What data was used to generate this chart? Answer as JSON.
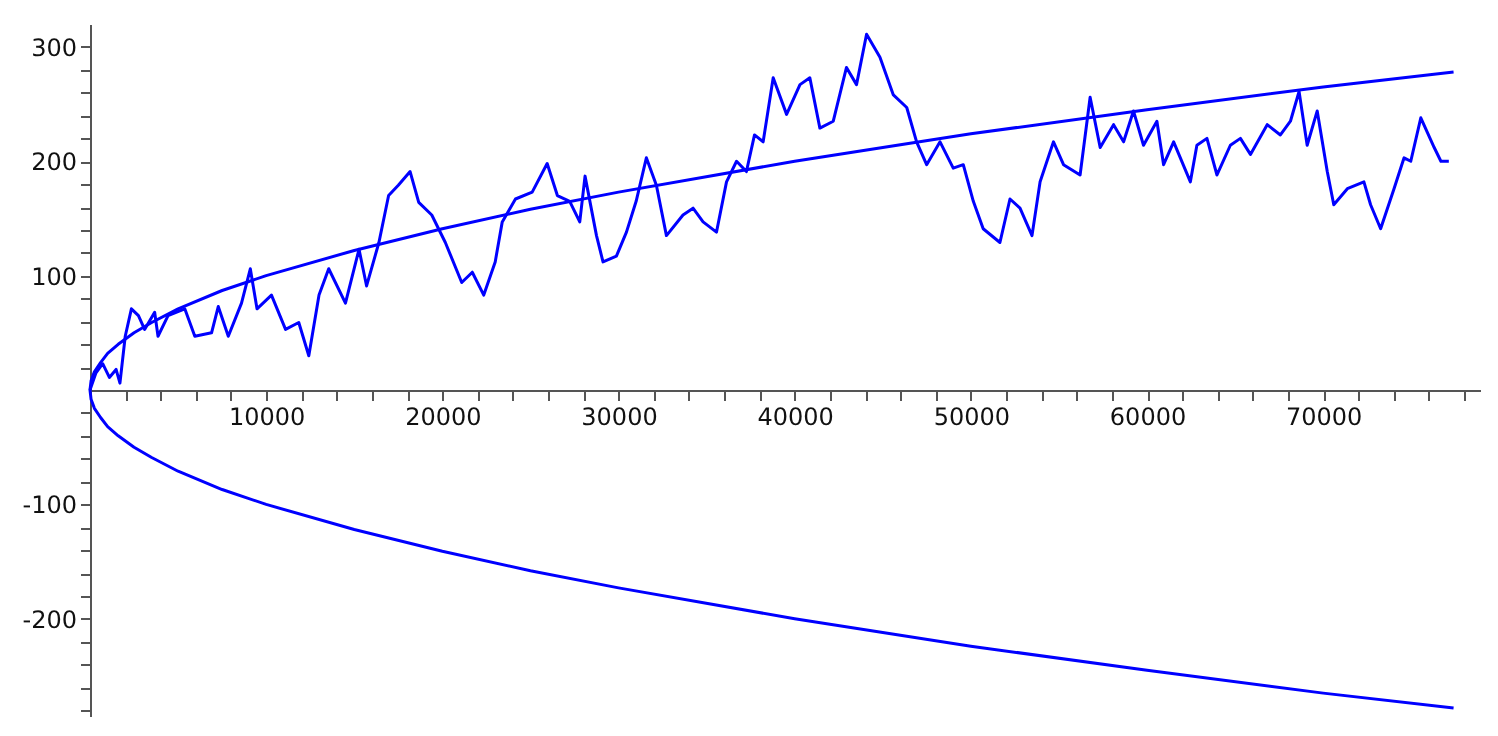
{
  "chart_data": {
    "type": "line",
    "xlim": [
      0,
      78900
    ],
    "ylim": [
      -285,
      320
    ],
    "xticks": [
      {
        "value": 2000,
        "label": null
      },
      {
        "value": 4000,
        "label": null
      },
      {
        "value": 6000,
        "label": null
      },
      {
        "value": 8000,
        "label": null
      },
      10000,
      {
        "value": 12000,
        "label": null
      },
      {
        "value": 14000,
        "label": null
      },
      {
        "value": 16000,
        "label": null
      },
      {
        "value": 18000,
        "label": null
      },
      20000,
      {
        "value": 22000,
        "label": null
      },
      {
        "value": 24000,
        "label": null
      },
      {
        "value": 26000,
        "label": null
      },
      {
        "value": 28000,
        "label": null
      },
      30000,
      {
        "value": 32000,
        "label": null
      },
      {
        "value": 34000,
        "label": null
      },
      {
        "value": 36000,
        "label": null
      },
      {
        "value": 38000,
        "label": null
      },
      40000,
      {
        "value": 42000,
        "label": null
      },
      {
        "value": 44000,
        "label": null
      },
      {
        "value": 46000,
        "label": null
      },
      {
        "value": 48000,
        "label": null
      },
      50000,
      {
        "value": 52000,
        "label": null
      },
      {
        "value": 54000,
        "label": null
      },
      {
        "value": 56000,
        "label": null
      },
      {
        "value": 58000,
        "label": null
      },
      60000,
      {
        "value": 62000,
        "label": null
      },
      {
        "value": 64000,
        "label": null
      },
      {
        "value": 66000,
        "label": null
      },
      {
        "value": 68000,
        "label": null
      },
      70000,
      {
        "value": 72000,
        "label": null
      },
      {
        "value": 74000,
        "label": null
      },
      {
        "value": 76000,
        "label": null
      },
      {
        "value": 78000,
        "label": null
      }
    ],
    "yticks": [
      {
        "value": -280,
        "label": null
      },
      {
        "value": -260,
        "label": null
      },
      {
        "value": -240,
        "label": null
      },
      {
        "value": -220,
        "label": null
      },
      -200,
      {
        "value": -180,
        "label": null
      },
      {
        "value": -160,
        "label": null
      },
      {
        "value": -140,
        "label": null
      },
      {
        "value": -120,
        "label": null
      },
      -100,
      {
        "value": -80,
        "label": null
      },
      {
        "value": -60,
        "label": null
      },
      {
        "value": -40,
        "label": null
      },
      {
        "value": -20,
        "label": null
      },
      {
        "value": 20,
        "label": null
      },
      {
        "value": 40,
        "label": null
      },
      {
        "value": 60,
        "label": null
      },
      {
        "value": 80,
        "label": null
      },
      100,
      {
        "value": 120,
        "label": null
      },
      {
        "value": 140,
        "label": null
      },
      {
        "value": 160,
        "label": null
      },
      {
        "value": 180,
        "label": null
      },
      200,
      {
        "value": 220,
        "label": null
      },
      {
        "value": 240,
        "label": null
      },
      {
        "value": 260,
        "label": null
      },
      {
        "value": 280,
        "label": null
      },
      300
    ],
    "grid": false,
    "series": [
      {
        "color": "#0000ff",
        "x": [
          0,
          340,
          720,
          1100,
          1480,
          1700,
          2000,
          2350,
          2750,
          3100,
          3670,
          3860,
          4430,
          5380,
          5950,
          6900,
          7280,
          7850,
          8600,
          9100,
          9480,
          10300,
          11100,
          11850,
          12420,
          13000,
          13550,
          14500,
          15270,
          15700,
          16400,
          16950,
          17500,
          18170,
          18660,
          19400,
          20170,
          21100,
          21700,
          22350,
          23000,
          23400,
          24150,
          25100,
          25950,
          26530,
          27230,
          27800,
          28100,
          28750,
          29120,
          29880,
          30450,
          31000,
          31580,
          32150,
          32720,
          33660,
          34230,
          34800,
          35560,
          36130,
          36700,
          37260,
          37720,
          38210,
          38780,
          39540,
          40300,
          40860,
          41430,
          42190,
          42940,
          43510,
          44080,
          44840,
          45600,
          46360,
          46920,
          47490,
          48250,
          49000,
          49570,
          50140,
          50700,
          51650,
          52220,
          52790,
          53470,
          53930,
          54690,
          55260,
          56200,
          56770,
          57340,
          58100,
          58670,
          59230,
          59800,
          60560,
          60940,
          61510,
          62460,
          62830,
          63400,
          63970,
          64730,
          65300,
          65870,
          66820,
          67570,
          68140,
          68630,
          69090,
          69660,
          70230,
          70600,
          71370,
          72310,
          72690,
          73260,
          74020,
          74590,
          74970,
          75540,
          76300,
          76680,
          77130
        ],
        "values": [
          0,
          15,
          23,
          11,
          18,
          6,
          47,
          71,
          65,
          53,
          68,
          47,
          65,
          71,
          47,
          50,
          73,
          47,
          76,
          106,
          71,
          83,
          53,
          59,
          30,
          83,
          106,
          76,
          123,
          91,
          129,
          170,
          179,
          191,
          164,
          153,
          129,
          94,
          103,
          83,
          112,
          147,
          167,
          173,
          198,
          170,
          165,
          147,
          187,
          135,
          112,
          117,
          138,
          165,
          203,
          179,
          135,
          153,
          159,
          147,
          138,
          182,
          200,
          191,
          223,
          217,
          273,
          241,
          267,
          273,
          229,
          235,
          282,
          267,
          311,
          291,
          258,
          247,
          217,
          197,
          217,
          194,
          197,
          165,
          141,
          129,
          167,
          159,
          135,
          182,
          217,
          197,
          188,
          256,
          212,
          232,
          217,
          244,
          214,
          235,
          197,
          217,
          182,
          214,
          220,
          188,
          214,
          220,
          206,
          232,
          223,
          235,
          261,
          214,
          244,
          191,
          162,
          176,
          182,
          162,
          141,
          176,
          203,
          200,
          238,
          212,
          200,
          200
        ]
      },
      {
        "color": "#0000ff",
        "x": [
          77400,
          70000,
          60000,
          50000,
          40000,
          30000,
          25000,
          20000,
          15000,
          10000,
          7500,
          5000,
          3500,
          2500,
          1600,
          1000,
          600,
          250,
          60,
          0,
          60,
          250,
          600,
          1000,
          1600,
          2500,
          3500,
          5000,
          7500,
          10000,
          15000,
          20000,
          25000,
          30000,
          40000,
          50000,
          60000,
          70000,
          77400
        ],
        "values": [
          -278,
          -265,
          -245,
          -224,
          -200,
          -173,
          -158,
          -141,
          -122,
          -100,
          -87,
          -71,
          -59,
          -50,
          -40,
          -32,
          -24,
          -16,
          -8,
          0,
          8,
          16,
          24,
          32,
          40,
          50,
          59,
          71,
          87,
          100,
          122,
          141,
          158,
          173,
          200,
          224,
          245,
          265,
          278
        ]
      }
    ]
  }
}
